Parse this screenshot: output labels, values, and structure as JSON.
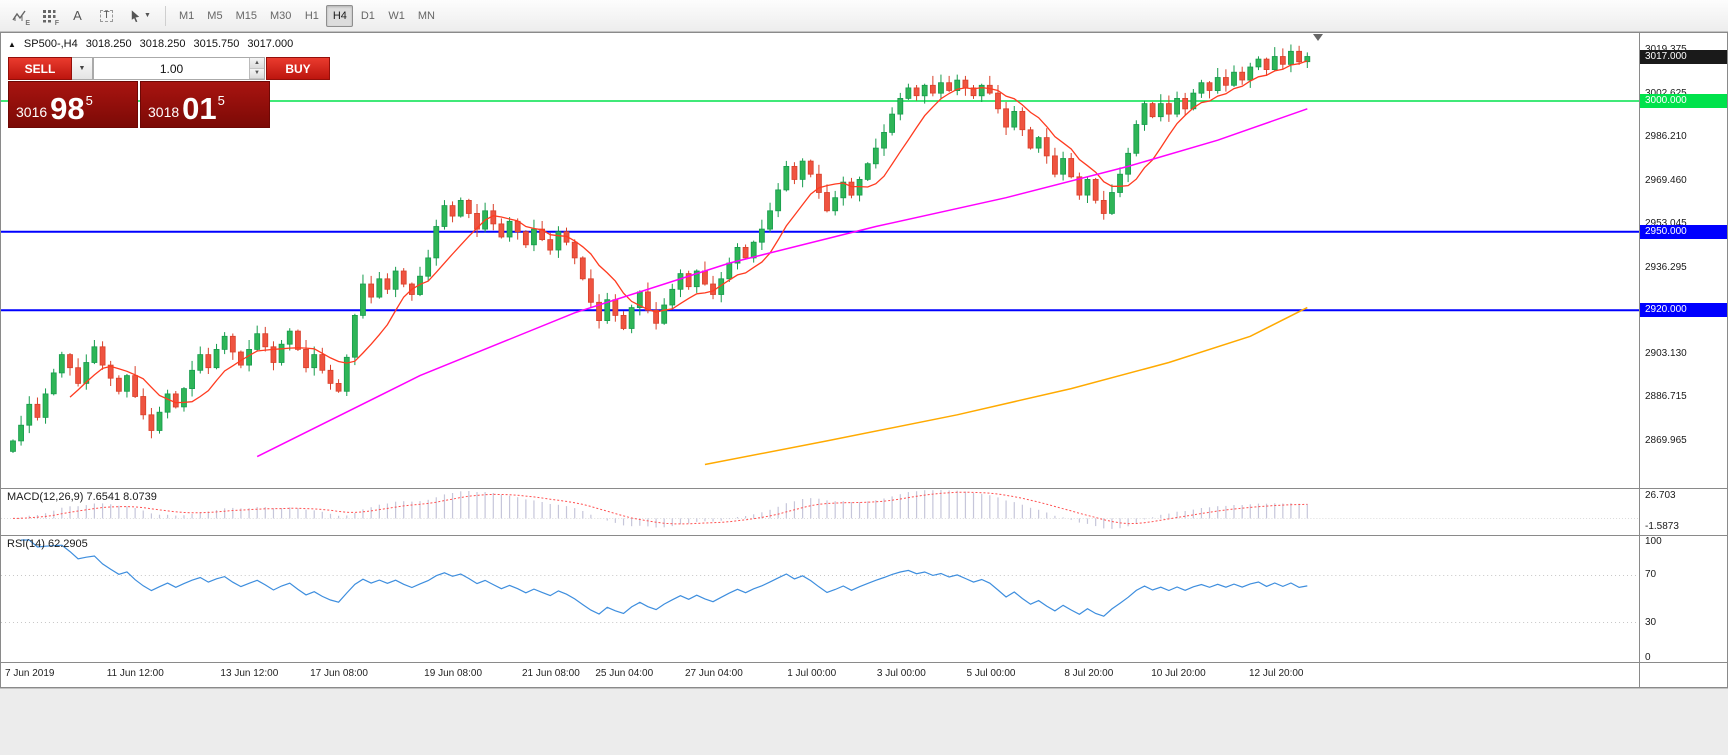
{
  "toolbar": {
    "icon_subs": {
      "chart": "E",
      "grid": "F"
    },
    "glyphs": {
      "text": "A",
      "textbox": "T"
    },
    "timeframes": [
      {
        "label": "M1",
        "active": false
      },
      {
        "label": "M5",
        "active": false
      },
      {
        "label": "M15",
        "active": false
      },
      {
        "label": "M30",
        "active": false
      },
      {
        "label": "H1",
        "active": false
      },
      {
        "label": "H4",
        "active": true
      },
      {
        "label": "D1",
        "active": false
      },
      {
        "label": "W1",
        "active": false
      },
      {
        "label": "MN",
        "active": false
      }
    ]
  },
  "symbol_line": {
    "marker": "▲",
    "symbol": "SP500-,H4",
    "open": "3018.250",
    "high": "3018.250",
    "low": "3015.750",
    "close": "3017.000"
  },
  "trade": {
    "sell_label": "SELL",
    "buy_label": "BUY",
    "volume": "1.00",
    "bid": {
      "prefix": "3016",
      "big": "98",
      "sup": "5"
    },
    "ask": {
      "prefix": "3018",
      "big": "01",
      "sup": "5"
    }
  },
  "chart": {
    "price_top": 3026,
    "price_bottom": 2852,
    "colors": {
      "up": "#169b4c",
      "up_fill": "#2eb557",
      "down": "#d8402a",
      "down_fill": "#ef5340",
      "ma_fast": "#ff3b20",
      "ma_mid": "#ff00ff",
      "ma_slow": "#ffaa00"
    },
    "levels": [
      {
        "price": 3000,
        "color": "#00e24b",
        "width": 1.4
      },
      {
        "price": 2950,
        "color": "#0000ff",
        "width": 2
      },
      {
        "price": 2920,
        "color": "#0000ff",
        "width": 2
      }
    ],
    "series": {
      "type": "candlestick",
      "closes": [
        2870,
        2876,
        2884,
        2879,
        2888,
        2896,
        2903,
        2898,
        2892,
        2900,
        2906,
        2899,
        2894,
        2889,
        2895,
        2887,
        2880,
        2874,
        2881,
        2888,
        2883,
        2890,
        2897,
        2903,
        2898,
        2905,
        2910,
        2904,
        2899,
        2905,
        2911,
        2906,
        2900,
        2907,
        2912,
        2905,
        2898,
        2903,
        2897,
        2892,
        2889,
        2902,
        2918,
        2930,
        2925,
        2932,
        2928,
        2935,
        2930,
        2926,
        2933,
        2940,
        2952,
        2960,
        2956,
        2962,
        2957,
        2951,
        2958,
        2953,
        2948,
        2954,
        2950,
        2945,
        2951,
        2947,
        2943,
        2950,
        2946,
        2940,
        2932,
        2923,
        2916,
        2924,
        2918,
        2913,
        2921,
        2927,
        2920,
        2915,
        2922,
        2928,
        2934,
        2929,
        2935,
        2930,
        2926,
        2932,
        2938,
        2944,
        2940,
        2946,
        2951,
        2958,
        2966,
        2975,
        2970,
        2977,
        2972,
        2965,
        2958,
        2963,
        2969,
        2964,
        2970,
        2976,
        2982,
        2988,
        2995,
        3001,
        3005,
        3002,
        3006,
        3003,
        3007,
        3004,
        3008,
        3005,
        3002,
        3006,
        3003,
        2997,
        2990,
        2996,
        2989,
        2982,
        2986,
        2979,
        2972,
        2978,
        2971,
        2964,
        2970,
        2962,
        2957,
        2965,
        2972,
        2980,
        2991,
        2999,
        2994,
        2999,
        2995,
        3001,
        2997,
        3003,
        3007,
        3004,
        3009,
        3006,
        3011,
        3008,
        3013,
        3016,
        3012,
        3017,
        3014,
        3019,
        3015,
        3017
      ]
    },
    "ma_mid_points": [
      [
        30,
        2864
      ],
      [
        50,
        2895
      ],
      [
        69,
        2919
      ],
      [
        88,
        2938
      ],
      [
        106,
        2952
      ],
      [
        122,
        2963
      ],
      [
        137,
        2975
      ],
      [
        148,
        2985
      ],
      [
        159,
        2997
      ]
    ],
    "ma_slow_points": [
      [
        85,
        2861
      ],
      [
        100,
        2870
      ],
      [
        116,
        2880
      ],
      [
        130,
        2890
      ],
      [
        142,
        2900
      ],
      [
        152,
        2910
      ],
      [
        159,
        2921
      ]
    ],
    "price_axis": {
      "labels": [
        {
          "text": "3019.375",
          "price": 3019.375
        },
        {
          "text": "3002.625",
          "price": 3002.625
        },
        {
          "text": "2986.210",
          "price": 2986.21
        },
        {
          "text": "2969.460",
          "price": 2969.46
        },
        {
          "text": "2953.045",
          "price": 2953.045
        },
        {
          "text": "2936.295",
          "price": 2936.295
        },
        {
          "text": "2903.130",
          "price": 2903.13
        },
        {
          "text": "2886.715",
          "price": 2886.715
        },
        {
          "text": "2869.965",
          "price": 2869.965
        }
      ],
      "badges": [
        {
          "text": "3017.000",
          "price": 3017.0,
          "color": "#1a1a1a"
        },
        {
          "text": "3000.000",
          "price": 3000.0,
          "color": "#00e24b"
        },
        {
          "text": "2950.000",
          "price": 2950.0,
          "color": "#0000ff"
        },
        {
          "text": "2920.000",
          "price": 2920.0,
          "color": "#0000ff"
        }
      ]
    },
    "time_labels": [
      {
        "label": "7 Jun 2019",
        "index": 0
      },
      {
        "label": "11 Jun 12:00",
        "index": 15
      },
      {
        "label": "13 Jun 12:00",
        "index": 29
      },
      {
        "label": "17 Jun 08:00",
        "index": 40
      },
      {
        "label": "19 Jun 08:00",
        "index": 54
      },
      {
        "label": "21 Jun 08:00",
        "index": 66
      },
      {
        "label": "25 Jun 04:00",
        "index": 75
      },
      {
        "label": "27 Jun 04:00",
        "index": 86
      },
      {
        "label": "1 Jul 00:00",
        "index": 98
      },
      {
        "label": "3 Jul 00:00",
        "index": 109
      },
      {
        "label": "5 Jul 00:00",
        "index": 120
      },
      {
        "label": "8 Jul 20:00",
        "index": 132
      },
      {
        "label": "10 Jul 20:00",
        "index": 143
      },
      {
        "label": "12 Jul 20:00",
        "index": 155
      }
    ]
  },
  "macd": {
    "label": "MACD(12,26,9) 7.6541 8.0739",
    "axis_top": "26.703",
    "axis_bottom": "-1.5873",
    "range": [
      -9,
      16
    ],
    "bar_color": "#c6c6da",
    "signal_color": "#ff5050"
  },
  "rsi": {
    "label": "RSI(14) 62.2905",
    "axis": [
      {
        "text": "100",
        "value": 100
      },
      {
        "text": "70",
        "value": 70
      },
      {
        "text": "30",
        "value": 30
      },
      {
        "text": "0",
        "value": 0
      }
    ],
    "levels": [
      70,
      30
    ],
    "line_color": "#3e8ede"
  }
}
